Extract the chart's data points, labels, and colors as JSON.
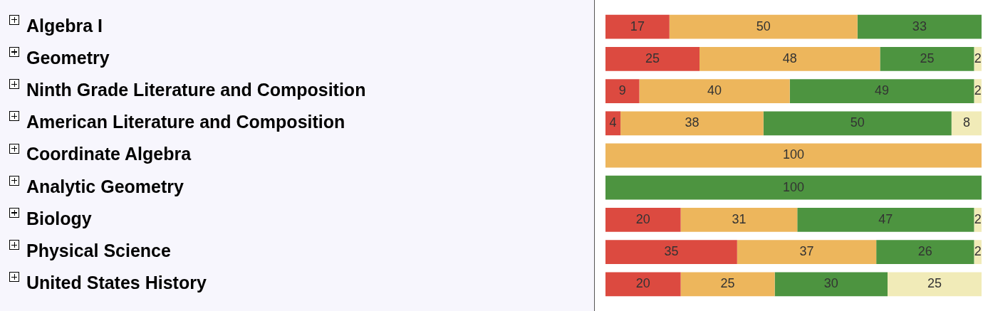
{
  "chart_data": {
    "type": "bar",
    "orientation": "horizontal",
    "stacked": true,
    "data_labels": true,
    "grid": false,
    "legend": false,
    "tick_labels": "y",
    "xlim": [
      0,
      100
    ],
    "categories": [
      "Algebra I",
      "Geometry",
      "Ninth Grade Literature and Composition",
      "American Literature and Composition",
      "Coordinate Algebra",
      "Analytic Geometry",
      "Biology",
      "Physical Science",
      "United States History"
    ],
    "series": [
      {
        "color": "#dc4a40",
        "values": [
          17,
          25,
          9,
          4,
          null,
          null,
          20,
          35,
          20
        ]
      },
      {
        "color": "#edb65c",
        "values": [
          50,
          48,
          40,
          38,
          100,
          null,
          31,
          37,
          25
        ]
      },
      {
        "color": "#4d9440",
        "values": [
          33,
          25,
          49,
          50,
          null,
          100,
          47,
          26,
          30
        ]
      },
      {
        "color": "#f1ebb8",
        "values": [
          null,
          2,
          2,
          8,
          null,
          null,
          2,
          2,
          25
        ]
      }
    ]
  }
}
